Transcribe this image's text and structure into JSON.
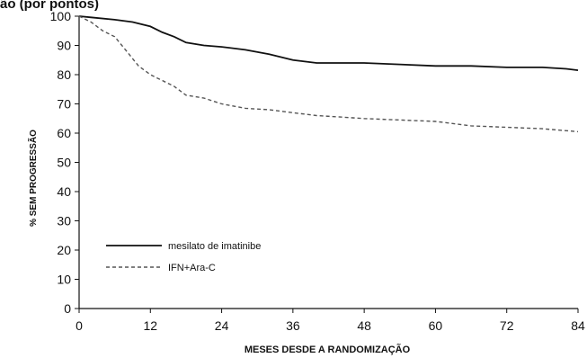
{
  "chart_data": {
    "type": "line",
    "top_text": "ão (por pontos)",
    "xlabel": "MESES DESDE A RANDOMIZAÇÃO",
    "ylabel": "% SEM PROGRESSÃO",
    "xlim": [
      0,
      84
    ],
    "ylim": [
      0,
      100
    ],
    "x_ticks": [
      0,
      12,
      24,
      36,
      48,
      60,
      72,
      84
    ],
    "y_ticks": [
      0,
      10,
      20,
      30,
      40,
      50,
      60,
      70,
      80,
      90,
      100
    ],
    "grid": false,
    "legend_position": "lower-left",
    "series": [
      {
        "name": "mesilato de imatinibe",
        "style": "solid",
        "color": "#111111",
        "x": [
          0,
          2,
          6,
          9,
          12,
          14,
          16,
          18,
          21,
          24,
          28,
          32,
          36,
          40,
          48,
          54,
          60,
          66,
          72,
          78,
          82,
          84
        ],
        "y": [
          100,
          99.6,
          98.8,
          98,
          96.5,
          94.5,
          93,
          91,
          90,
          89.5,
          88.5,
          87,
          85,
          84,
          84,
          83.5,
          83,
          83,
          82.5,
          82.5,
          82,
          81.5
        ]
      },
      {
        "name": "IFN+Ara-C",
        "style": "dashed",
        "color": "#555555",
        "x": [
          0,
          2,
          4,
          6,
          8,
          10,
          12,
          14,
          16,
          18,
          21,
          24,
          28,
          32,
          36,
          40,
          44,
          48,
          54,
          60,
          66,
          72,
          78,
          84
        ],
        "y": [
          100,
          98,
          95,
          93,
          88,
          83,
          80,
          78,
          76,
          73,
          72,
          70,
          68.5,
          68,
          67,
          66,
          65.5,
          65,
          64.5,
          64,
          62.5,
          62,
          61.5,
          60.5
        ]
      }
    ]
  }
}
